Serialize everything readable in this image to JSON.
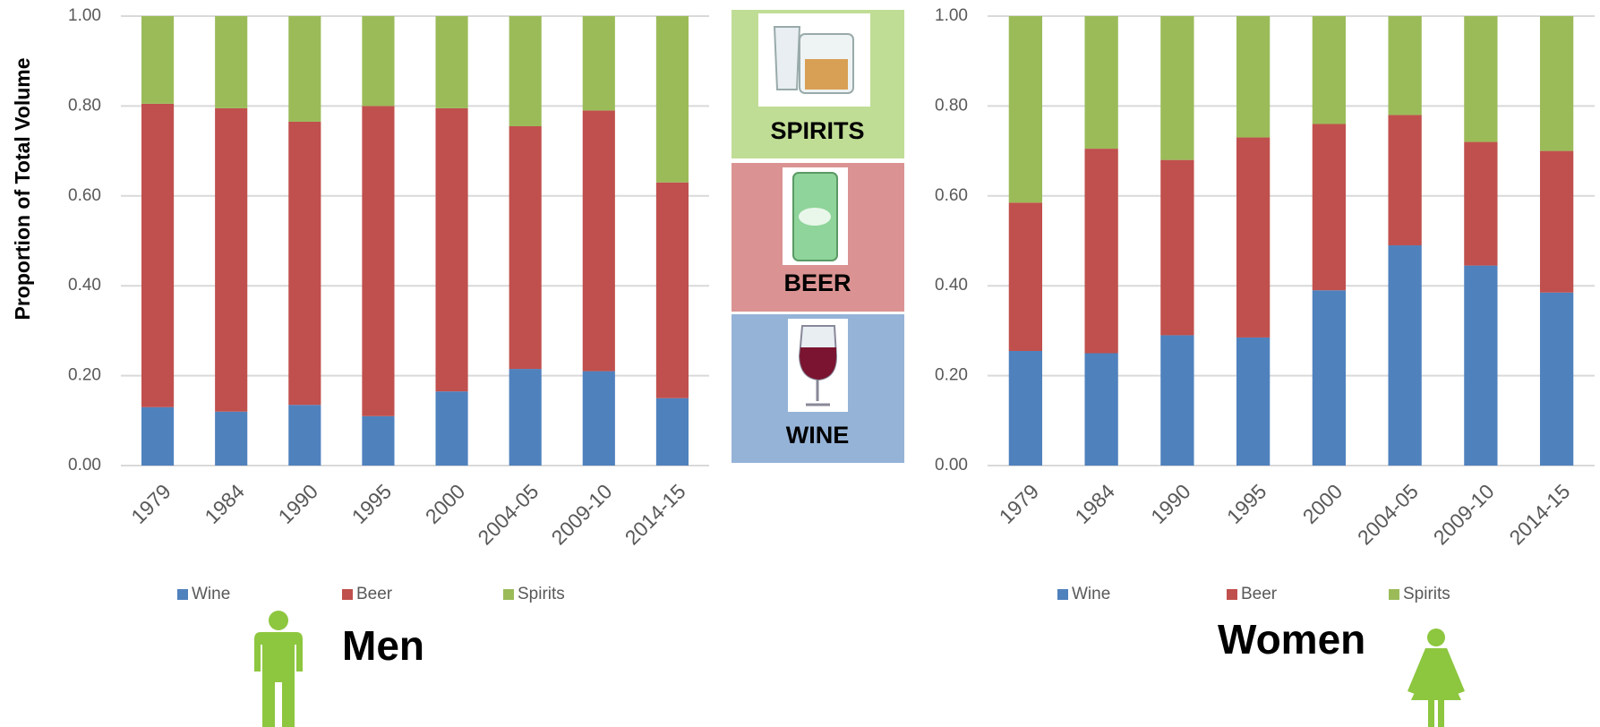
{
  "y_label": "Proportion of Total Volume",
  "middle_panel": {
    "labels": [
      "SPIRITS",
      "BEER",
      "WINE"
    ]
  },
  "chart_data": [
    {
      "type": "stacked_bar",
      "title": "Men",
      "categories": [
        "1979",
        "1984",
        "1990",
        "1995",
        "2000",
        "2004-05",
        "2009-10",
        "2014-15"
      ],
      "series": [
        {
          "name": "Wine",
          "color": "#4f81bd",
          "values": [
            0.13,
            0.12,
            0.135,
            0.11,
            0.165,
            0.215,
            0.21,
            0.15
          ]
        },
        {
          "name": "Beer",
          "color": "#c0504d",
          "values": [
            0.675,
            0.675,
            0.63,
            0.69,
            0.63,
            0.54,
            0.58,
            0.48
          ]
        },
        {
          "name": "Spirits",
          "color": "#9bbb59",
          "values": [
            0.195,
            0.205,
            0.235,
            0.2,
            0.205,
            0.245,
            0.21,
            0.37
          ]
        }
      ],
      "ylim": [
        0,
        1
      ],
      "yticks": [
        {
          "value": 0,
          "label": "0.00"
        },
        {
          "value": 0.2,
          "label": "0.20"
        },
        {
          "value": 0.4,
          "label": "0.40"
        },
        {
          "value": 0.6,
          "label": "0.60"
        },
        {
          "value": 0.8,
          "label": "0.80"
        },
        {
          "value": 1,
          "label": "1.00"
        }
      ],
      "grid": true
    },
    {
      "type": "stacked_bar",
      "title": "Women",
      "categories": [
        "1979",
        "1984",
        "1990",
        "1995",
        "2000",
        "2004-05",
        "2009-10",
        "2014-15"
      ],
      "series": [
        {
          "name": "Wine",
          "color": "#4f81bd",
          "values": [
            0.255,
            0.25,
            0.29,
            0.285,
            0.39,
            0.49,
            0.445,
            0.385
          ]
        },
        {
          "name": "Beer",
          "color": "#c0504d",
          "values": [
            0.33,
            0.455,
            0.39,
            0.445,
            0.37,
            0.29,
            0.275,
            0.315
          ]
        },
        {
          "name": "Spirits",
          "color": "#9bbb59",
          "values": [
            0.415,
            0.295,
            0.32,
            0.27,
            0.24,
            0.22,
            0.28,
            0.3
          ]
        }
      ],
      "ylim": [
        0,
        1
      ],
      "yticks": [
        {
          "value": 0,
          "label": "0.00"
        },
        {
          "value": 0.2,
          "label": "0.20"
        },
        {
          "value": 0.4,
          "label": "0.40"
        },
        {
          "value": 0.6,
          "label": "0.60"
        },
        {
          "value": 0.8,
          "label": "0.80"
        },
        {
          "value": 1,
          "label": "1.00"
        }
      ],
      "grid": true
    }
  ]
}
